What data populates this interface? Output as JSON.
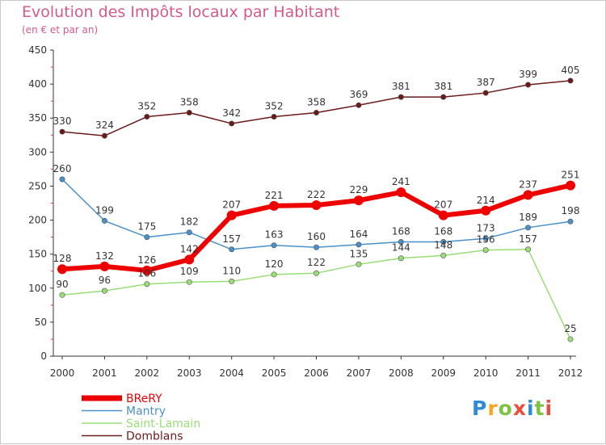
{
  "title": "Evolution des Impôts locaux par Habitant",
  "subtitle": "(en € et par an)",
  "logo": {
    "text": "Proxiti",
    "colors": [
      "#2e8bd8",
      "#f5a623",
      "#7cc242",
      "#e84c3d",
      "#2e8bd8",
      "#7cc242",
      "#e84c3d"
    ]
  },
  "chart_data": {
    "type": "line",
    "x": [
      "2000",
      "2001",
      "2002",
      "2003",
      "2004",
      "2005",
      "2006",
      "2007",
      "2008",
      "2009",
      "2010",
      "2011",
      "2012"
    ],
    "ylim": [
      0,
      450
    ],
    "yticks": [
      0,
      50,
      100,
      150,
      200,
      250,
      300,
      350,
      400,
      450
    ],
    "grid": false,
    "legend_position": "bottom-left",
    "series": [
      {
        "name": "Domblans",
        "color": "#6b1a1a",
        "values": [
          330,
          324,
          352,
          358,
          342,
          352,
          358,
          369,
          381,
          381,
          387,
          399,
          405
        ]
      },
      {
        "name": "Saint-Lamain",
        "color": "#99dd77",
        "values": [
          90,
          96,
          106,
          109,
          110,
          120,
          122,
          135,
          144,
          148,
          156,
          157,
          25
        ]
      },
      {
        "name": "Mantry",
        "color": "#4a90c8",
        "values": [
          260,
          199,
          175,
          182,
          157,
          163,
          160,
          164,
          168,
          168,
          173,
          189,
          198
        ]
      },
      {
        "name": "BReRY",
        "color": "#ee0000",
        "values": [
          128,
          132,
          126,
          142,
          207,
          221,
          222,
          229,
          241,
          207,
          214,
          237,
          251
        ]
      }
    ],
    "legend_order": [
      "BReRY",
      "Mantry",
      "Saint-Lamain",
      "Domblans"
    ]
  }
}
